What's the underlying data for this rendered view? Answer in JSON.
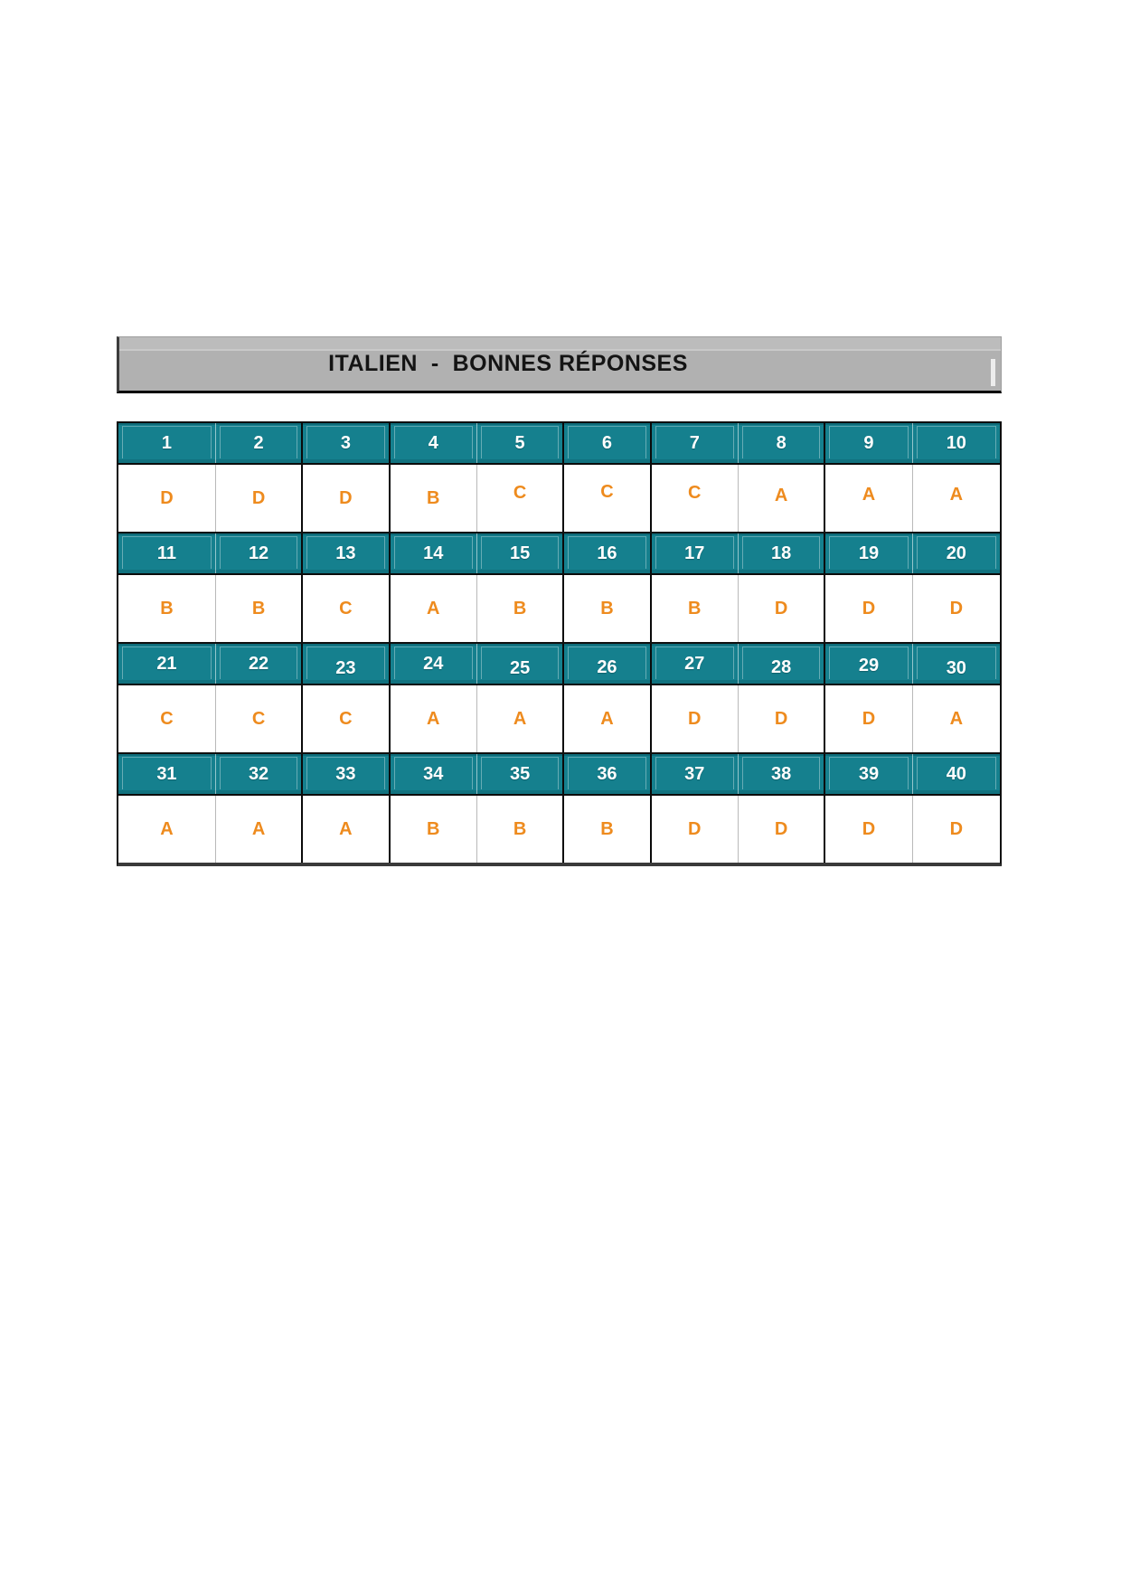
{
  "document": {
    "title": "ITALIEN  -  BONNES RÉPONSES"
  },
  "answer_key": {
    "rows": [
      {
        "numbers": [
          "1",
          "2",
          "3",
          "4",
          "5",
          "6",
          "7",
          "8",
          "9",
          "10"
        ],
        "answers": [
          "D",
          "D",
          "D",
          "B",
          "C",
          "C",
          "C",
          "A",
          "A",
          "A"
        ]
      },
      {
        "numbers": [
          "11",
          "12",
          "13",
          "14",
          "15",
          "16",
          "17",
          "18",
          "19",
          "20"
        ],
        "answers": [
          "B",
          "B",
          "C",
          "A",
          "B",
          "B",
          "B",
          "D",
          "D",
          "D"
        ]
      },
      {
        "numbers": [
          "21",
          "22",
          "23",
          "24",
          "25",
          "26",
          "27",
          "28",
          "29",
          "30"
        ],
        "answers": [
          "C",
          "C",
          "C",
          "A",
          "A",
          "A",
          "D",
          "D",
          "D",
          "A"
        ]
      },
      {
        "numbers": [
          "31",
          "32",
          "33",
          "34",
          "35",
          "36",
          "37",
          "38",
          "39",
          "40"
        ],
        "answers": [
          "A",
          "A",
          "A",
          "B",
          "B",
          "B",
          "D",
          "D",
          "D",
          "D"
        ]
      }
    ]
  },
  "colors": {
    "header_teal": "#15808e",
    "answer_orange": "#ee8b1e",
    "title_bar_gray": "#b1b1b1",
    "title_text": "#141414",
    "grid_dark_line": "#0a0a0a",
    "grid_light_line": "#b9b9b9"
  }
}
